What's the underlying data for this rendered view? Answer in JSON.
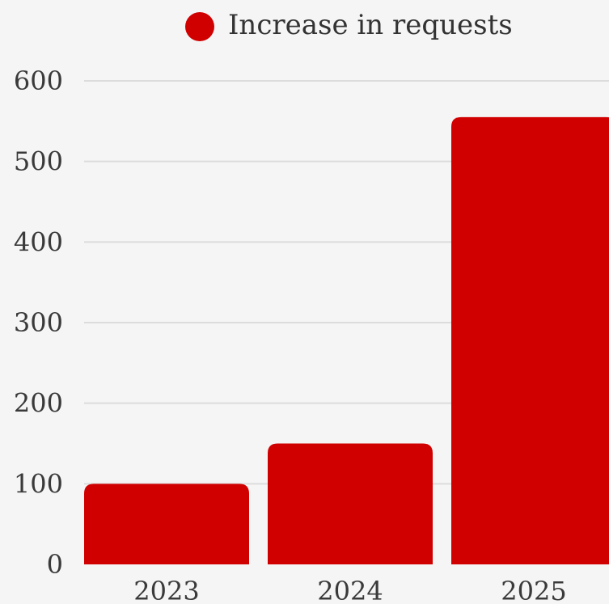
{
  "chart_data": {
    "type": "bar",
    "categories": [
      "2023",
      "2024",
      "2025"
    ],
    "series": [
      {
        "name": "Increase in requests",
        "values": [
          100,
          150,
          555
        ],
        "color": "#d10000"
      }
    ],
    "ylim": [
      0,
      600
    ],
    "yticks": [
      "0",
      "100",
      "200",
      "300",
      "400",
      "500",
      "600"
    ],
    "grid": true,
    "legend_position": "top-center",
    "title": "",
    "xlabel": "",
    "ylabel": ""
  }
}
